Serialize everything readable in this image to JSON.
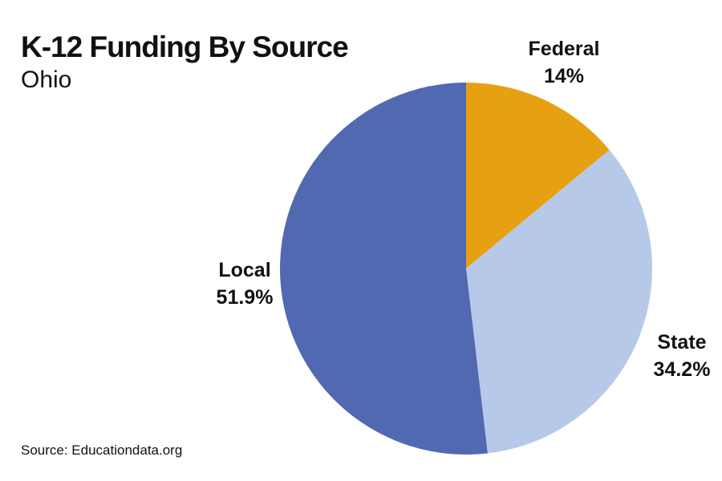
{
  "header": {
    "title": "K-12 Funding By Source",
    "subtitle": "Ohio"
  },
  "footer": {
    "source": "Source: Educationdata.org"
  },
  "chart_data": {
    "type": "pie",
    "title": "K-12 Funding By Source",
    "subtitle": "Ohio",
    "start_angle": "12 o'clock",
    "direction": "clockwise",
    "slices": [
      {
        "label": "Federal",
        "value": 14,
        "display": "14%",
        "color": "#E8A013"
      },
      {
        "label": "State",
        "value": 34.2,
        "display": "34.2%",
        "color": "#B7C9E8"
      },
      {
        "label": "Local",
        "value": 51.9,
        "display": "51.9%",
        "color": "#5169B1"
      }
    ]
  }
}
